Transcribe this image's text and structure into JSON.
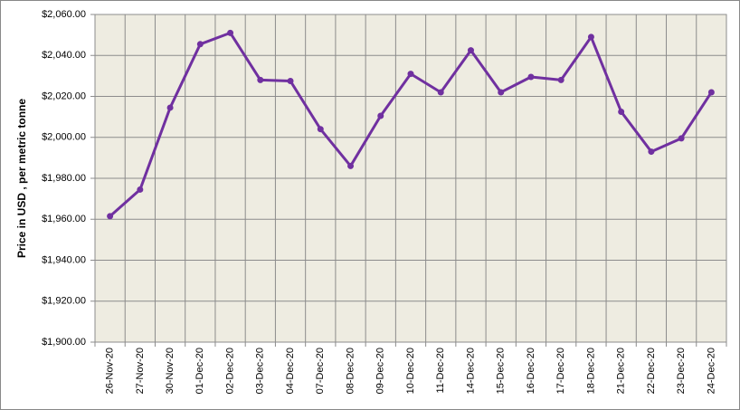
{
  "chart_data": {
    "type": "line",
    "y_label": "Price in USD , per metric tonne",
    "categories": [
      "26-Nov-20",
      "27-Nov-20",
      "30-Nov-20",
      "01-Dec-20",
      "02-Dec-20",
      "03-Dec-20",
      "04-Dec-20",
      "07-Dec-20",
      "08-Dec-20",
      "09-Dec-20",
      "10-Dec-20",
      "11-Dec-20",
      "14-Dec-20",
      "15-Dec-20",
      "16-Dec-20",
      "17-Dec-20",
      "18-Dec-20",
      "21-Dec-20",
      "22-Dec-20",
      "23-Dec-20",
      "24-Dec-20"
    ],
    "values": [
      1961.5,
      1974.5,
      2014.5,
      2045.5,
      2051,
      2028,
      2027.5,
      2004,
      1986,
      2010.5,
      2031,
      2022,
      2042.5,
      2022,
      2029.5,
      2028,
      2049,
      2012.5,
      1993,
      1999.5,
      2022
    ],
    "color": "#7030a0",
    "ylim": [
      1900,
      2060
    ],
    "yticks": [
      {
        "value": 1900,
        "label": "$1,900.00"
      },
      {
        "value": 1920,
        "label": "$1,920.00"
      },
      {
        "value": 1940,
        "label": "$1,940.00"
      },
      {
        "value": 1960,
        "label": "$1,960.00"
      },
      {
        "value": 1980,
        "label": "$1,980.00"
      },
      {
        "value": 2000,
        "label": "$2,000.00"
      },
      {
        "value": 2020,
        "label": "$2,020.00"
      },
      {
        "value": 2040,
        "label": "$2,040.00"
      },
      {
        "value": 2060,
        "label": "$2,060.00"
      }
    ],
    "grid": true
  }
}
